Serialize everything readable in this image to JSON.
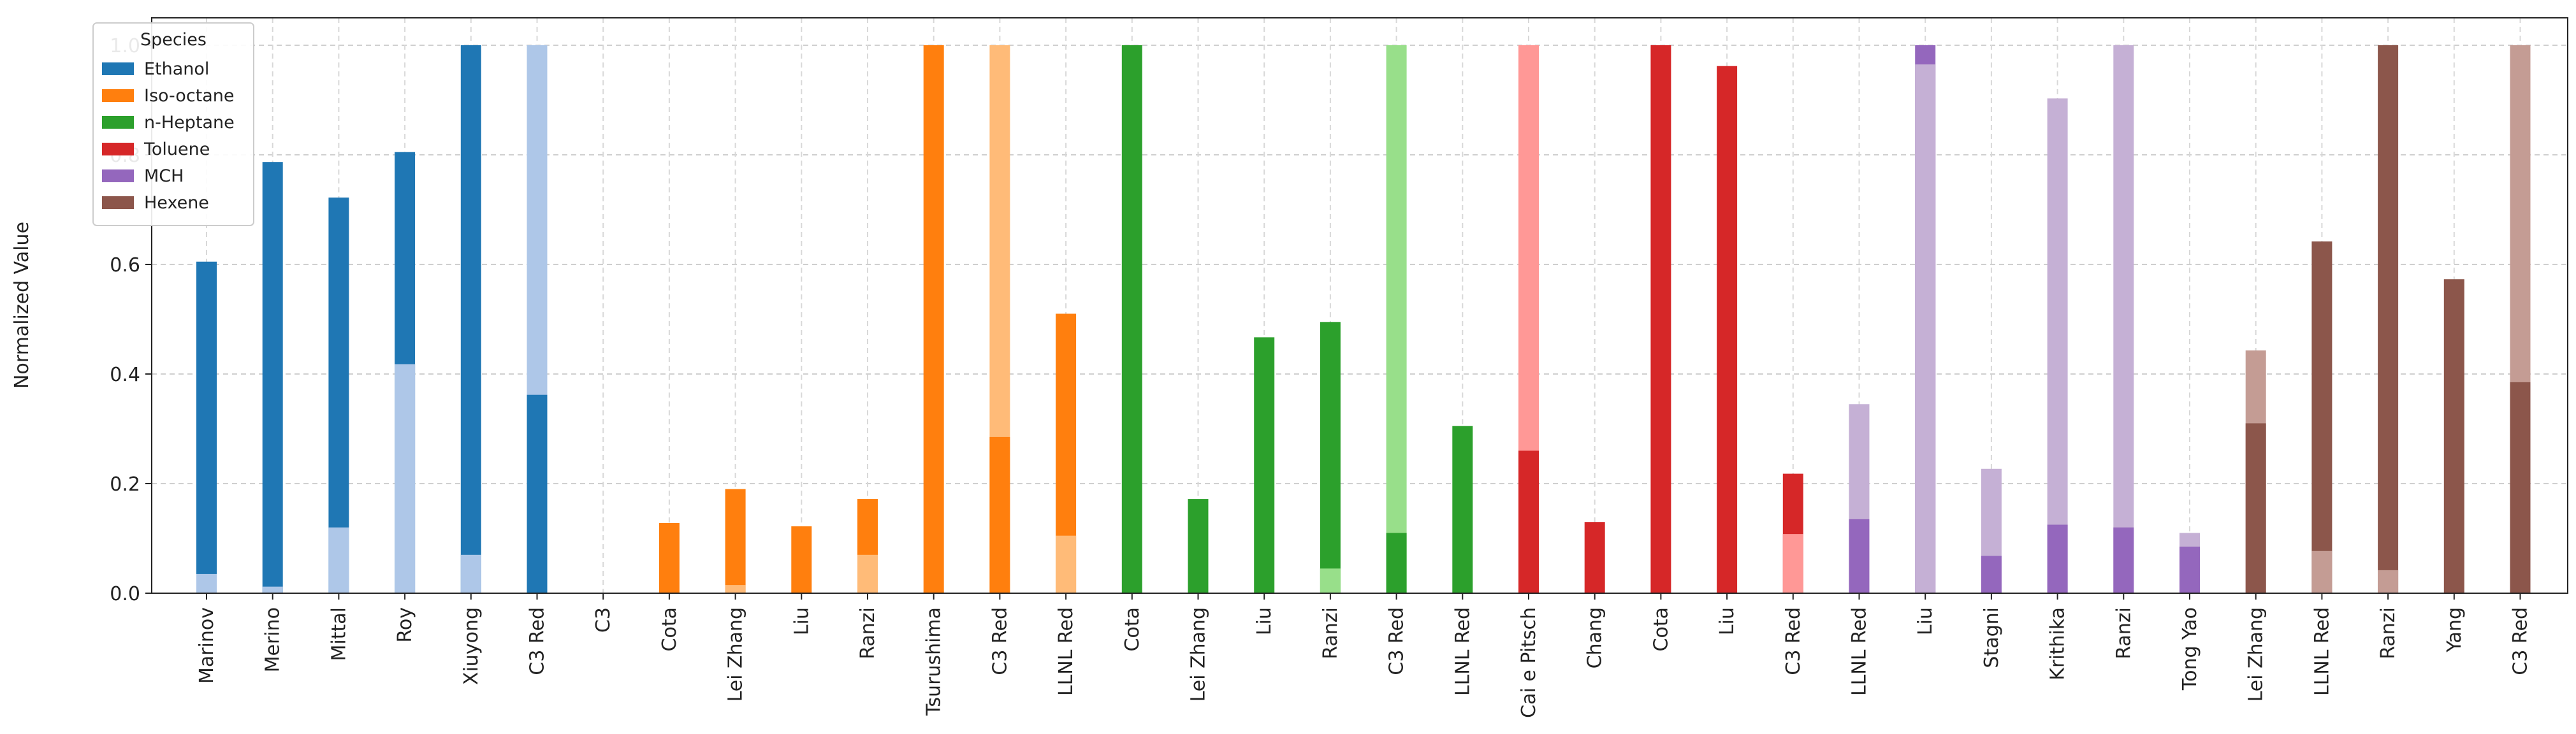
{
  "chart_data": {
    "type": "bar",
    "title": "",
    "xlabel": "",
    "ylabel": "Normalized Value",
    "ylim": [
      0,
      1.05
    ],
    "yticks": [
      "0.0",
      "0.2",
      "0.4",
      "0.6",
      "0.8",
      "1.0"
    ],
    "grid": true,
    "legend": {
      "title": "Species",
      "placement": "top-left"
    },
    "species": [
      {
        "name": "Ethanol",
        "color": "#1f77b4",
        "light": "#aec7e8"
      },
      {
        "name": "Iso-octane",
        "color": "#ff7f0e",
        "light": "#ffbb78"
      },
      {
        "name": "n-Heptane",
        "color": "#2ca02c",
        "light": "#98df8a"
      },
      {
        "name": "Toluene",
        "color": "#d62728",
        "light": "#ff9896"
      },
      {
        "name": "MCH",
        "color": "#9467bd",
        "light": "#c5b0d5"
      },
      {
        "name": "Hexene",
        "color": "#8c564b",
        "light": "#c49c94"
      }
    ],
    "categories": [
      "Marinov",
      "Merino",
      "Mittal",
      "Roy",
      "Xiuyong",
      "C3 Red",
      "C3",
      "Cota",
      "Lei Zhang",
      "Liu",
      "Ranzi",
      "Tsurushima",
      "C3 Red",
      "LLNL Red",
      "Cota",
      "Lei Zhang",
      "Liu",
      "Ranzi",
      "C3 Red",
      "LLNL  Red",
      "Cai e Pitsch",
      "Chang",
      "Cota",
      "Liu",
      "C3 Red",
      "LLNL Red",
      "Liu",
      "Stagni",
      "Krithika",
      "Ranzi",
      "Tong Yao",
      "Lei Zhang",
      "LLNL Red",
      "Ranzi",
      "Yang",
      "C3 Red"
    ],
    "bars": [
      {
        "species": 0,
        "v1": 0.605,
        "v2": 0.035
      },
      {
        "species": 0,
        "v1": 0.787,
        "v2": 0.012
      },
      {
        "species": 0,
        "v1": 0.722,
        "v2": 0.12
      },
      {
        "species": 0,
        "v1": 0.805,
        "v2": 0.418
      },
      {
        "species": 0,
        "v1": 1.0,
        "v2": 0.07
      },
      {
        "species": 0,
        "v1": 0.362,
        "v2": 1.0
      },
      {
        "species": 1,
        "v1": 0.0,
        "v2": 0.0
      },
      {
        "species": 1,
        "v1": 0.128,
        "v2": 0.0
      },
      {
        "species": 1,
        "v1": 0.19,
        "v2": 0.015
      },
      {
        "species": 1,
        "v1": 0.122,
        "v2": 0.0
      },
      {
        "species": 1,
        "v1": 0.172,
        "v2": 0.07
      },
      {
        "species": 1,
        "v1": 1.0,
        "v2": 0.0
      },
      {
        "species": 1,
        "v1": 0.285,
        "v2": 1.0
      },
      {
        "species": 1,
        "v1": 0.51,
        "v2": 0.105
      },
      {
        "species": 2,
        "v1": 1.0,
        "v2": 0.0
      },
      {
        "species": 2,
        "v1": 0.172,
        "v2": 0.0
      },
      {
        "species": 2,
        "v1": 0.467,
        "v2": 0.0
      },
      {
        "species": 2,
        "v1": 0.495,
        "v2": 0.045
      },
      {
        "species": 2,
        "v1": 0.11,
        "v2": 1.0
      },
      {
        "species": 2,
        "v1": 0.305,
        "v2": 0.0
      },
      {
        "species": 3,
        "v1": 0.26,
        "v2": 1.0
      },
      {
        "species": 3,
        "v1": 0.13,
        "v2": 0.0
      },
      {
        "species": 3,
        "v1": 1.0,
        "v2": 0.0
      },
      {
        "species": 3,
        "v1": 0.962,
        "v2": 0.0
      },
      {
        "species": 3,
        "v1": 0.218,
        "v2": 0.108
      },
      {
        "species": 4,
        "v1": 0.135,
        "v2": 0.345
      },
      {
        "species": 4,
        "v1": 1.0,
        "v2": 0.965
      },
      {
        "species": 4,
        "v1": 0.068,
        "v2": 0.227
      },
      {
        "species": 4,
        "v1": 0.125,
        "v2": 0.903
      },
      {
        "species": 4,
        "v1": 0.12,
        "v2": 1.0
      },
      {
        "species": 4,
        "v1": 0.085,
        "v2": 0.11
      },
      {
        "species": 5,
        "v1": 0.31,
        "v2": 0.443
      },
      {
        "species": 5,
        "v1": 0.642,
        "v2": 0.077
      },
      {
        "species": 5,
        "v1": 1.0,
        "v2": 0.042
      },
      {
        "species": 5,
        "v1": 0.573,
        "v2": 0.0
      },
      {
        "species": 5,
        "v1": 0.385,
        "v2": 1.0
      }
    ]
  }
}
